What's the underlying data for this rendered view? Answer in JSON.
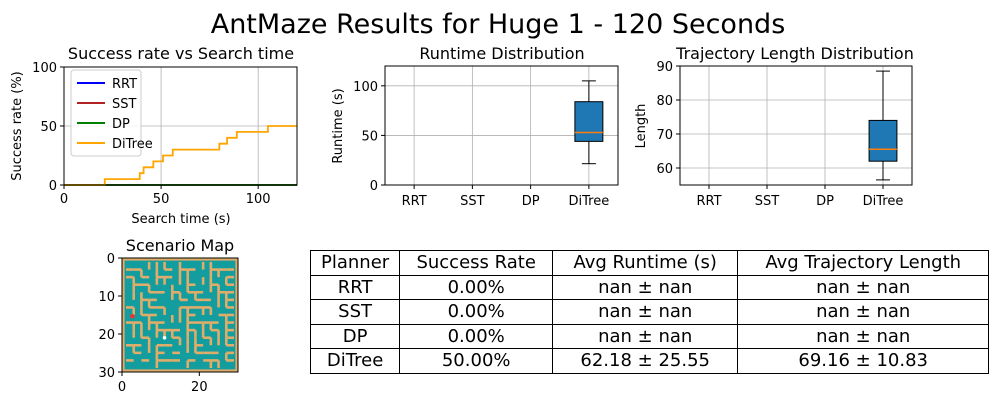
{
  "figure_title": "AntMaze Results for Huge 1 - 120 Seconds",
  "chart_data": [
    {
      "type": "line",
      "title": "Success rate vs Search time",
      "xlabel": "Search time (s)",
      "ylabel": "Success rate (%)",
      "xlim": [
        0,
        120
      ],
      "ylim": [
        0,
        100
      ],
      "xticks": [
        0,
        50,
        100
      ],
      "yticks": [
        0,
        50,
        100
      ],
      "grid": true,
      "legend_position": "top-left",
      "series": [
        {
          "name": "RRT",
          "color": "#0000ff",
          "x": [
            0,
            120
          ],
          "y": [
            0,
            0
          ]
        },
        {
          "name": "SST",
          "color": "#b22222",
          "x": [
            0,
            120
          ],
          "y": [
            0,
            0
          ]
        },
        {
          "name": "DP",
          "color": "#008000",
          "x": [
            0,
            120
          ],
          "y": [
            0,
            0
          ]
        },
        {
          "name": "DiTree",
          "color": "#ffa500",
          "x": [
            0,
            21,
            21,
            25,
            25,
            39,
            39,
            41,
            41,
            46,
            46,
            51,
            51,
            56,
            56,
            80,
            80,
            84,
            84,
            89,
            89,
            96,
            96,
            105,
            105,
            120
          ],
          "y": [
            0,
            0,
            5,
            5,
            5,
            5,
            10,
            10,
            15,
            15,
            20,
            20,
            25,
            25,
            30,
            30,
            35,
            35,
            40,
            40,
            45,
            45,
            45,
            45,
            50,
            50
          ]
        }
      ]
    },
    {
      "type": "box",
      "title": "Runtime Distribution",
      "xlabel": "",
      "ylabel": "Runtime (s)",
      "categories": [
        "RRT",
        "SST",
        "DP",
        "DiTree"
      ],
      "ylim": [
        0,
        120
      ],
      "yticks": [
        0,
        50,
        100
      ],
      "grid": true,
      "box_color": "#1f77b4",
      "median_color": "#ff7f0e",
      "boxes": [
        {
          "category": "DiTree",
          "whisker_low": 21.5,
          "q1": 44,
          "median": 53,
          "q3": 84,
          "whisker_high": 105
        }
      ]
    },
    {
      "type": "box",
      "title": "Trajectory Length Distribution",
      "xlabel": "",
      "ylabel": "Length",
      "categories": [
        "RRT",
        "SST",
        "DP",
        "DiTree"
      ],
      "ylim": [
        55,
        90
      ],
      "yticks": [
        60,
        70,
        80,
        90
      ],
      "grid": true,
      "box_color": "#1f77b4",
      "median_color": "#ff7f0e",
      "boxes": [
        {
          "category": "DiTree",
          "whisker_low": 56.5,
          "q1": 62,
          "median": 65.5,
          "q3": 74,
          "whisker_high": 88.5
        }
      ]
    },
    {
      "type": "heatmap",
      "title": "Scenario Map",
      "xlim": [
        0,
        30
      ],
      "ylim": [
        30,
        0
      ],
      "xticks": [
        0,
        20
      ],
      "yticks": [
        0,
        10,
        20,
        30
      ],
      "wall_color": "#e0ac6a",
      "floor_color": "#139d9f",
      "start_marker_color": "#ffffff",
      "goal_marker_color": "#ff2a2a"
    },
    {
      "type": "table",
      "columns": [
        "Planner",
        "Success Rate",
        "Avg Runtime (s)",
        "Avg Trajectory Length"
      ],
      "rows": [
        [
          "RRT",
          "0.00%",
          "nan ± nan",
          "nan ± nan"
        ],
        [
          "SST",
          "0.00%",
          "nan ± nan",
          "nan ± nan"
        ],
        [
          "DP",
          "0.00%",
          "nan ± nan",
          "nan ± nan"
        ],
        [
          "DiTree",
          "50.00%",
          "62.18 ± 25.55",
          "69.16 ± 10.83"
        ]
      ]
    }
  ]
}
